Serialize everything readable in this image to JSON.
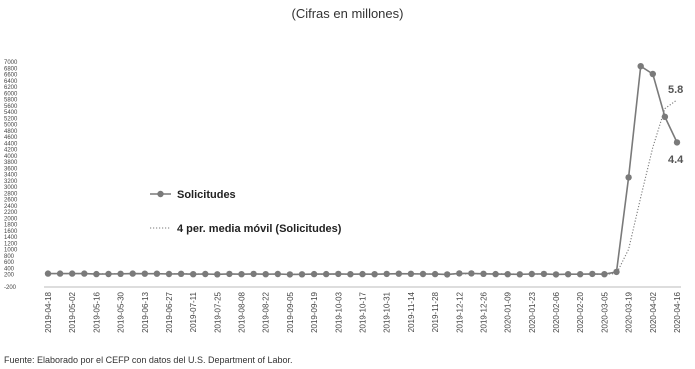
{
  "subtitle": "(Cifras en millones)",
  "source": "Fuente: Elaborado por el CEFP con datos del U.S. Department of Labor.",
  "colors": {
    "line": "#7a7a7a",
    "ma": "#7a7a7a",
    "axis": "#bbbbbb"
  },
  "chart_data": {
    "type": "line",
    "x": [
      "2019-04-18",
      "2019-04-25",
      "2019-05-02",
      "2019-05-09",
      "2019-05-16",
      "2019-05-23",
      "2019-05-30",
      "2019-06-06",
      "2019-06-13",
      "2019-06-20",
      "2019-06-27",
      "2019-07-04",
      "2019-07-11",
      "2019-07-18",
      "2019-07-25",
      "2019-08-01",
      "2019-08-08",
      "2019-08-15",
      "2019-08-22",
      "2019-08-29",
      "2019-09-05",
      "2019-09-12",
      "2019-09-19",
      "2019-09-26",
      "2019-10-03",
      "2019-10-10",
      "2019-10-17",
      "2019-10-24",
      "2019-10-31",
      "2019-11-07",
      "2019-11-14",
      "2019-11-21",
      "2019-11-28",
      "2019-12-05",
      "2019-12-12",
      "2019-12-19",
      "2019-12-26",
      "2020-01-02",
      "2020-01-09",
      "2020-01-16",
      "2020-01-23",
      "2020-01-30",
      "2020-02-06",
      "2020-02-13",
      "2020-02-20",
      "2020-02-27",
      "2020-03-05",
      "2020-03-12",
      "2020-03-19",
      "2020-03-26",
      "2020-04-02",
      "2020-04-09",
      "2020-04-16"
    ],
    "xticks": [
      "2019-04-18",
      "2019-05-02",
      "2019-05-16",
      "2019-05-30",
      "2019-06-13",
      "2019-06-27",
      "2019-07-11",
      "2019-07-25",
      "2019-08-08",
      "2019-08-22",
      "2019-09-05",
      "2019-09-19",
      "2019-10-03",
      "2019-10-17",
      "2019-10-31",
      "2019-11-14",
      "2019-11-28",
      "2019-12-12",
      "2019-12-26",
      "2020-01-09",
      "2020-01-23",
      "2020-02-06",
      "2020-02-20",
      "2020-03-05",
      "2020-03-19",
      "2020-04-02",
      "2020-04-16"
    ],
    "yticks": [
      -200,
      200,
      400,
      600,
      800,
      1000,
      1200,
      1400,
      1600,
      1800,
      2000,
      2200,
      2400,
      2600,
      2800,
      3000,
      3200,
      3400,
      3600,
      3800,
      4000,
      4200,
      4400,
      4600,
      4800,
      5000,
      5200,
      5400,
      5600,
      5800,
      6000,
      6200,
      6400,
      6600,
      6800,
      7000
    ],
    "ylim": [
      -200,
      7000
    ],
    "series": [
      {
        "name": "Solicitudes",
        "style": "line-markers",
        "values": [
          230,
          228,
          230,
          228,
          212,
          215,
          222,
          228,
          225,
          227,
          216,
          221,
          209,
          216,
          206,
          218,
          209,
          220,
          211,
          215,
          203,
          205,
          213,
          214,
          220,
          210,
          214,
          211,
          218,
          225,
          224,
          215,
          213,
          203,
          235,
          234,
          222,
          214,
          211,
          208,
          216,
          220,
          202,
          211,
          210,
          219,
          211,
          282,
          3307,
          6867,
          6615,
          5245,
          4427
        ]
      },
      {
        "name": "4 per. media móvil (Solicitudes)",
        "style": "dotted",
        "values": [
          230,
          229,
          229,
          229,
          224,
          221,
          219,
          219,
          223,
          226,
          224,
          222,
          218,
          215,
          213,
          215,
          212,
          216,
          214,
          216,
          212,
          208,
          209,
          209,
          213,
          214,
          214,
          214,
          216,
          217,
          219,
          220,
          219,
          214,
          216,
          221,
          223,
          226,
          220,
          214,
          212,
          214,
          212,
          212,
          211,
          210,
          210,
          230,
          1005,
          2667,
          4267,
          5508,
          5788
        ]
      }
    ],
    "end_labels": [
      "5.8",
      "4.4"
    ],
    "legend": "middle-left",
    "grid": false
  }
}
